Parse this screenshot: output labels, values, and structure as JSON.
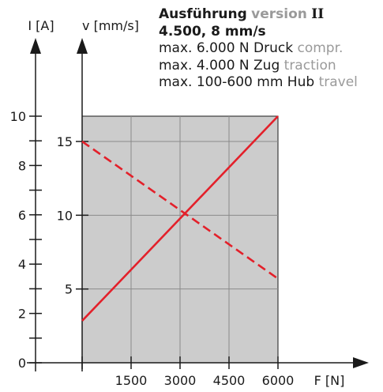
{
  "legend": {
    "title_de": "Ausführung",
    "title_en": "version",
    "title_numeral": "II",
    "subtitle": "4.500, 8 mm/s",
    "specs": [
      {
        "de": "max. 6.000 N Druck",
        "en": "compr."
      },
      {
        "de": "max. 4.000 N Zug",
        "en": "traction"
      },
      {
        "de": "max. 100-600 mm Hub",
        "en": "travel"
      }
    ]
  },
  "chart_data": {
    "type": "line",
    "xlabel": "F [N]",
    "ylabel_left": "I [A]",
    "ylabel_right": "v [mm/s]",
    "x_ticks": [
      1500,
      3000,
      4500,
      6000
    ],
    "x_tick_labels": [
      "1500",
      "3000",
      "4500",
      "6000"
    ],
    "xlim": [
      0,
      6000
    ],
    "i_ticks": [
      0,
      2,
      4,
      6,
      8,
      10
    ],
    "i_tick_labels": [
      "0",
      "2",
      "4",
      "6",
      "8",
      "10"
    ],
    "ylim_current": [
      0,
      10
    ],
    "v_ticks": [
      5,
      10,
      15
    ],
    "v_tick_labels": [
      "5",
      "10",
      "15"
    ],
    "ylim_speed": [
      0,
      15
    ],
    "grid": true,
    "plot_background": "#cccccc",
    "series": [
      {
        "axis": "current",
        "style": "solid",
        "color": "#e3202a",
        "x": [
          0,
          6000
        ],
        "y": [
          1.7,
          10
        ]
      },
      {
        "axis": "speed",
        "style": "dashed",
        "color": "#e3202a",
        "x": [
          0,
          6000
        ],
        "y": [
          15,
          5.7
        ]
      }
    ]
  }
}
